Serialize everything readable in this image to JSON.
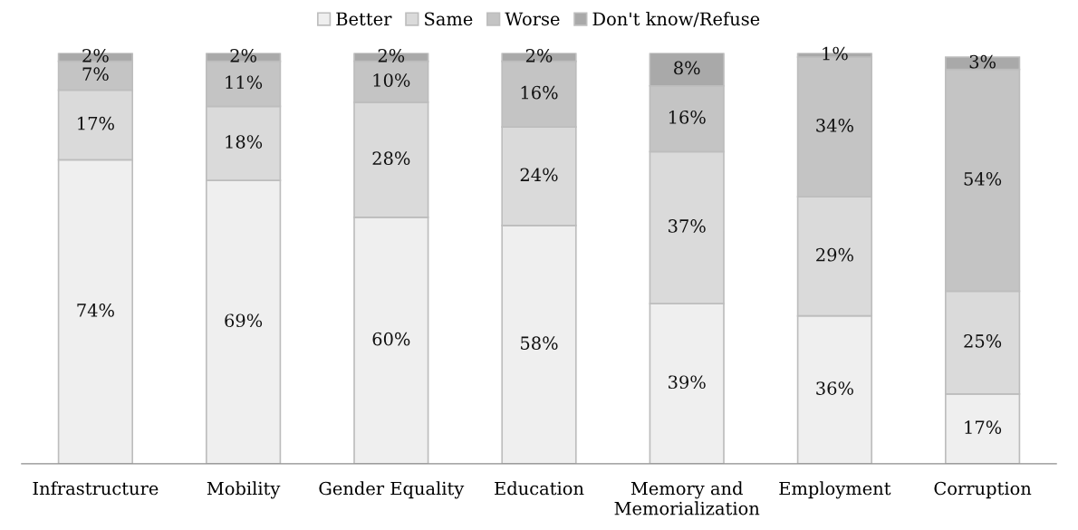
{
  "chart_data": {
    "type": "bar",
    "stacked": true,
    "legend": "top",
    "grid": false,
    "tick_labels": "x",
    "categories": [
      "Infrastructure",
      "Mobility",
      "Gender Equality",
      "Education",
      "Memory and\nMemorialization",
      "Employment",
      "Corruption"
    ],
    "series": [
      {
        "name": "Better",
        "color": "#efefef",
        "values": [
          74,
          69,
          60,
          58,
          39,
          36,
          17
        ],
        "value_labels": [
          "74%",
          "69%",
          "60%",
          "58%",
          "39%",
          "36%",
          "17%"
        ]
      },
      {
        "name": "Same",
        "color": "#dadada",
        "values": [
          17,
          18,
          28,
          24,
          37,
          29,
          25
        ],
        "value_labels": [
          "17%",
          "18%",
          "28%",
          "24%",
          "37%",
          "29%",
          "25%"
        ]
      },
      {
        "name": "Worse",
        "color": "#c4c4c4",
        "values": [
          7,
          11,
          10,
          16,
          16,
          34,
          54
        ],
        "value_labels": [
          "7%",
          "11%",
          "10%",
          "16%",
          "16%",
          "34%",
          "54%"
        ]
      },
      {
        "name": "Don't know/Refuse",
        "color": "#a9a9a9",
        "values": [
          2,
          2,
          2,
          2,
          8,
          1,
          3
        ],
        "value_labels": [
          "2%",
          "2%",
          "2%",
          "2%",
          "8%",
          "1%",
          "3%"
        ]
      }
    ]
  }
}
